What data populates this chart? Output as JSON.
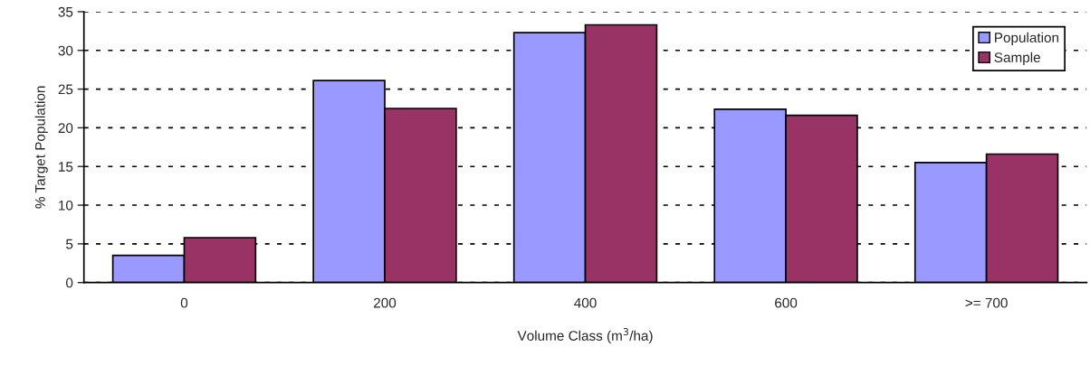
{
  "chart_data": {
    "type": "bar",
    "xlabel": "Volume Class (m$^{3}$/ha)",
    "ylabel": "% Target Population",
    "categories": [
      "0",
      "200",
      "400",
      "600",
      ">= 700"
    ],
    "series": [
      {
        "name": "Population",
        "color": "#9999ff",
        "values": [
          3.5,
          26.1,
          32.3,
          22.4,
          15.5
        ]
      },
      {
        "name": "Sample",
        "color": "#993366",
        "values": [
          5.8,
          22.5,
          33.3,
          21.6,
          16.6
        ]
      }
    ],
    "ylim": [
      0,
      35
    ],
    "yticks": [
      0,
      5,
      10,
      15,
      20,
      25,
      30,
      35
    ],
    "grid": "y",
    "legend": "top right"
  }
}
